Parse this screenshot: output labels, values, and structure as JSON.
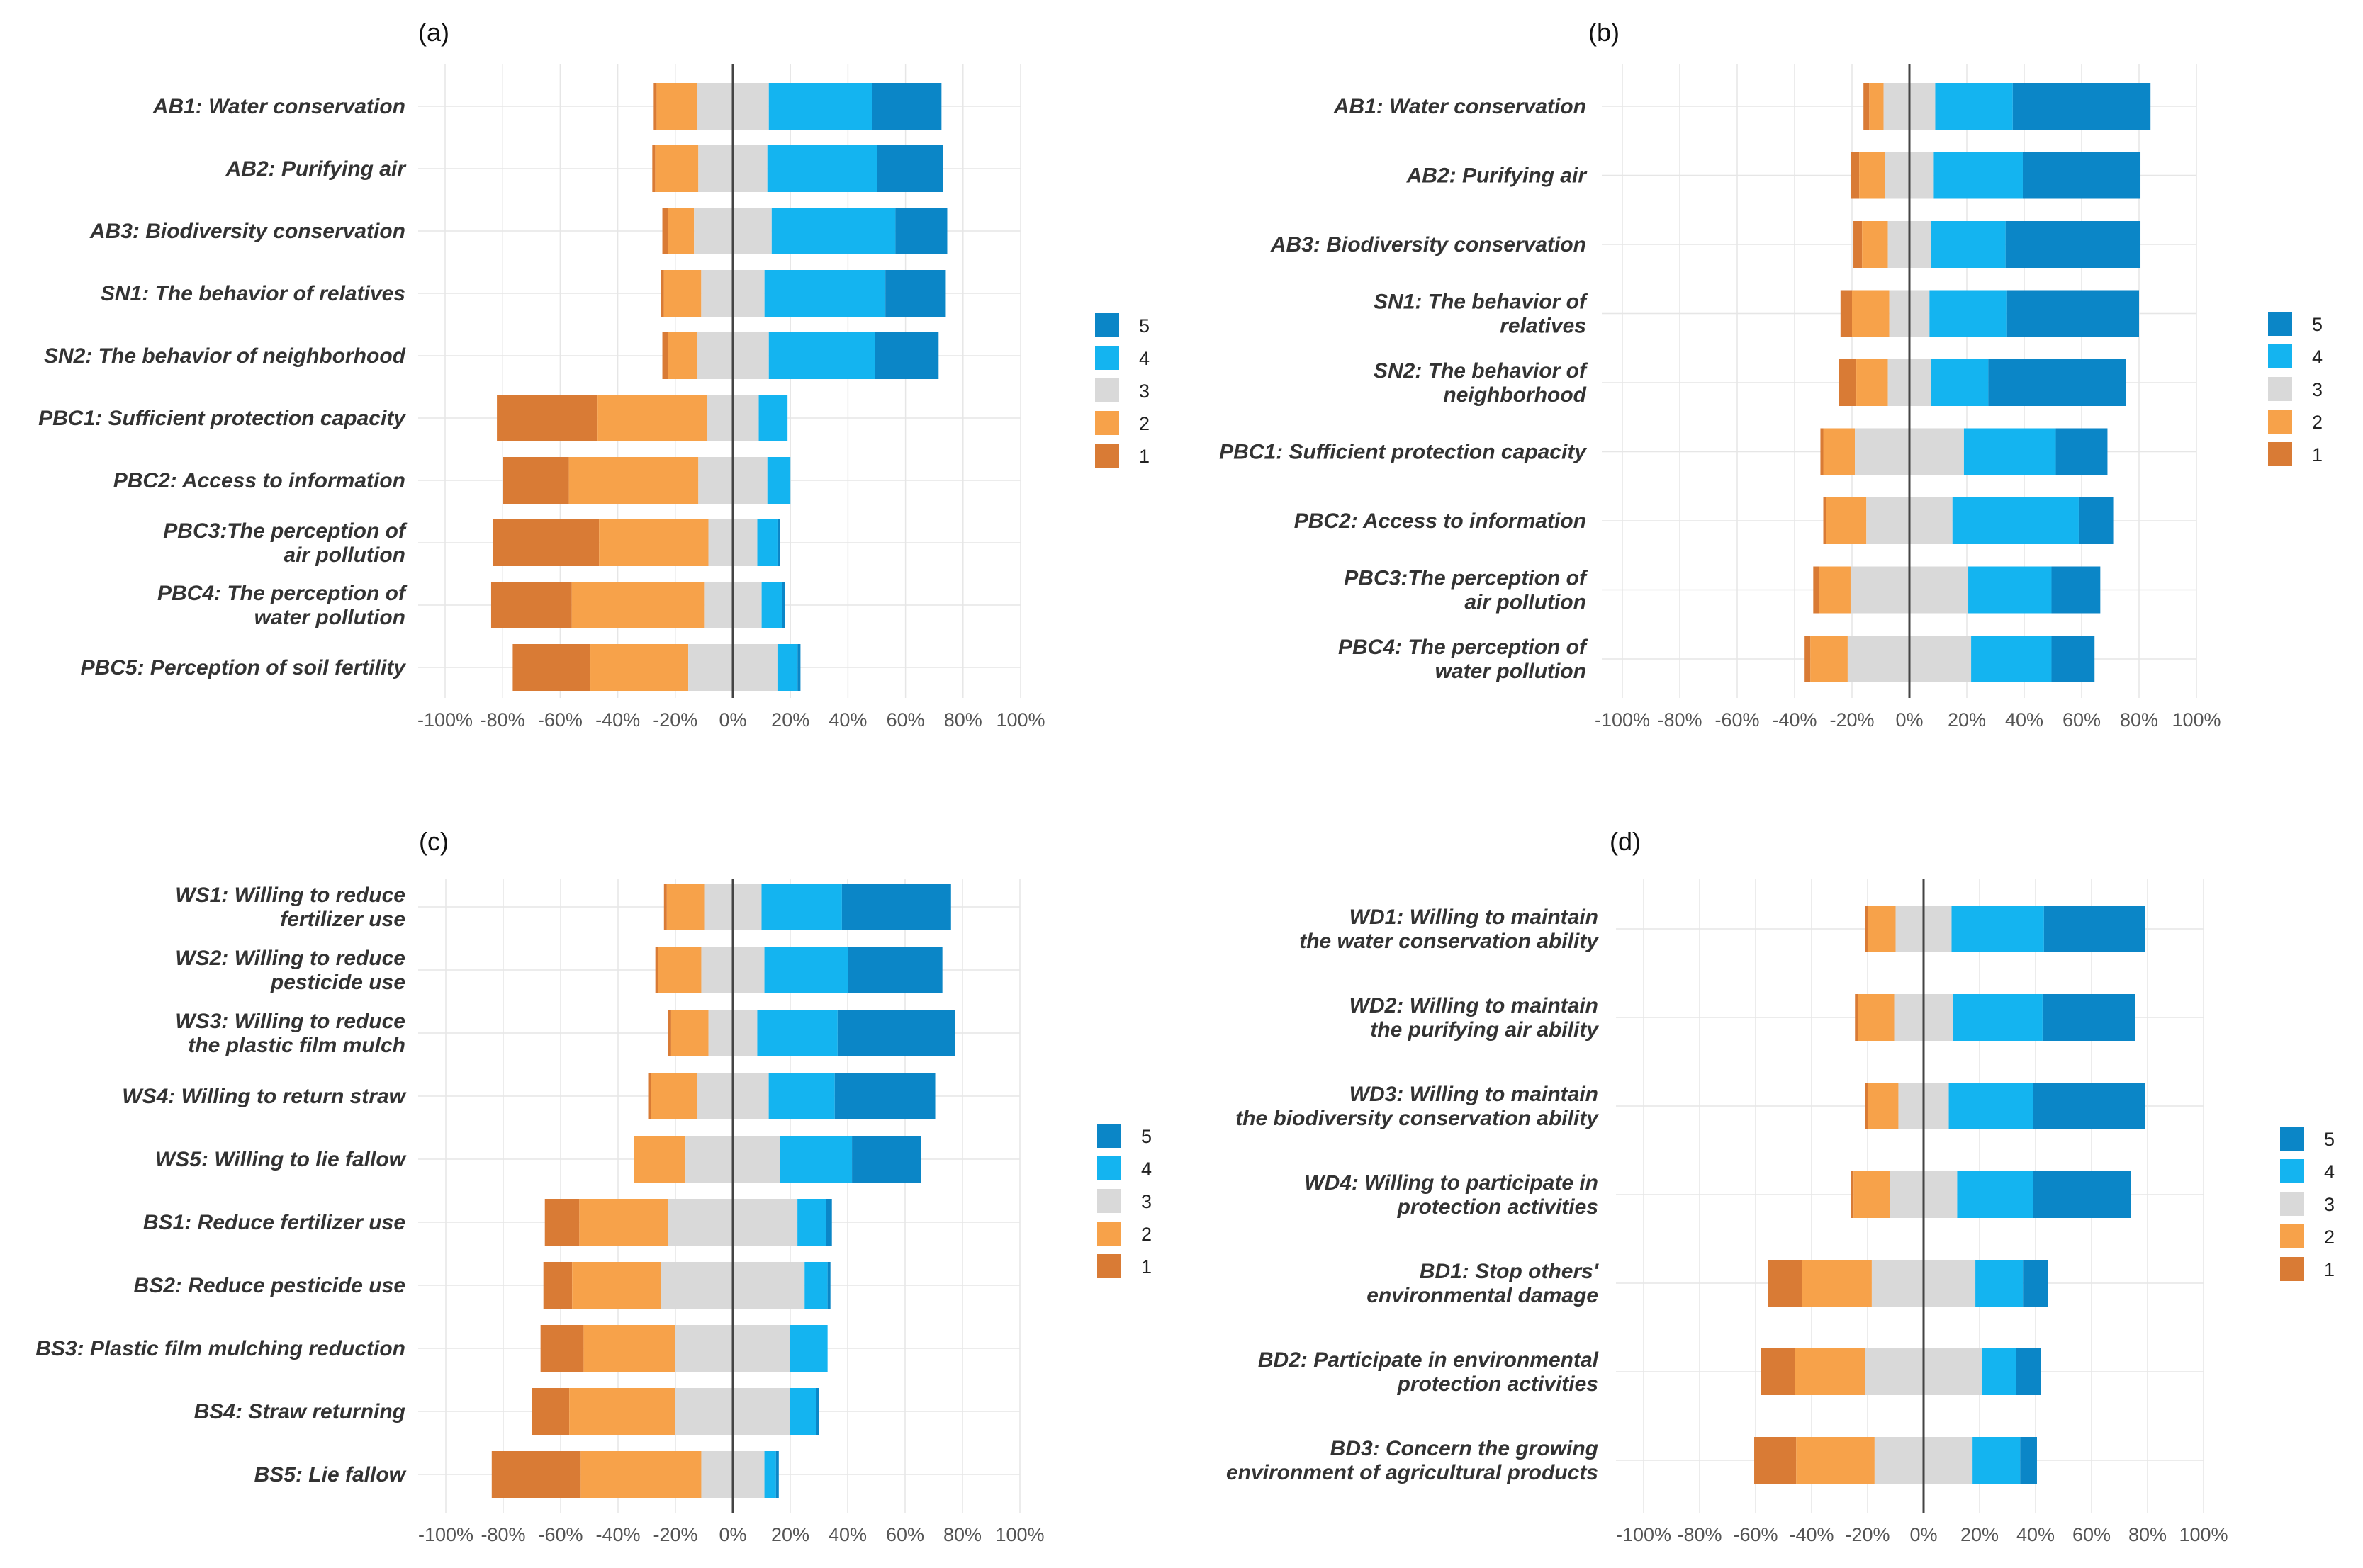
{
  "colors": {
    "1": "#d97b35",
    "2": "#f7a24a",
    "3": "#d9d9d9",
    "4": "#14b4f0",
    "5": "#0b86c7"
  },
  "legend": [
    "5",
    "4",
    "3",
    "2",
    "1"
  ],
  "x_ticks": [
    "-100%",
    "-80%",
    "-60%",
    "-40%",
    "-20%",
    "0%",
    "20%",
    "40%",
    "60%",
    "80%",
    "100%"
  ],
  "chart_data": [
    {
      "type": "bar",
      "panel": "(a)",
      "stacked": true,
      "orientation": "horizontal",
      "xlim": [
        -100,
        100
      ],
      "categories": [
        [
          "AB1: Water conservation"
        ],
        [
          "AB2: Purifying air"
        ],
        [
          "AB3: Biodiversity conservation"
        ],
        [
          "SN1: The behavior of relatives"
        ],
        [
          "SN2: The behavior of neighborhood"
        ],
        [
          "PBC1: Sufficient protection capacity"
        ],
        [
          "PBC2: Access to information"
        ],
        [
          "PBC3:The perception of",
          "air pollution"
        ],
        [
          "PBC4: The perception of",
          "water pollution"
        ],
        [
          "PBC5: Perception of soil fertility"
        ]
      ],
      "series": [
        {
          "name": "1",
          "values": [
            1,
            1,
            2,
            1,
            2,
            35,
            23,
            37,
            28,
            27
          ]
        },
        {
          "name": "2",
          "values": [
            14,
            15,
            9,
            13,
            10,
            38,
            45,
            38,
            46,
            34
          ]
        },
        {
          "name": "3",
          "values": [
            25,
            24,
            27,
            22,
            25,
            18,
            24,
            17,
            20,
            31
          ]
        },
        {
          "name": "4",
          "values": [
            36,
            38,
            43,
            42,
            37,
            10,
            8,
            7,
            7,
            7
          ]
        },
        {
          "name": "5",
          "values": [
            24,
            23,
            18,
            21,
            22,
            0,
            0,
            1,
            1,
            1
          ]
        }
      ]
    },
    {
      "type": "bar",
      "panel": "(b)",
      "stacked": true,
      "orientation": "horizontal",
      "xlim": [
        -100,
        100
      ],
      "categories": [
        [
          "AB1: Water conservation"
        ],
        [
          "AB2: Purifying air"
        ],
        [
          "AB3: Biodiversity conservation"
        ],
        [
          "SN1: The behavior of",
          "relatives"
        ],
        [
          "SN2: The behavior of",
          "neighborhood"
        ],
        [
          "PBC1: Sufficient protection capacity"
        ],
        [
          "PBC2: Access to information"
        ],
        [
          "PBC3:The perception of",
          "air pollution"
        ],
        [
          "PBC4: The perception of",
          "water pollution"
        ]
      ],
      "series": [
        {
          "name": "1",
          "values": [
            2,
            3,
            3,
            4,
            6,
            1,
            1,
            2,
            2
          ]
        },
        {
          "name": "2",
          "values": [
            5,
            9,
            9,
            13,
            11,
            11,
            14,
            11,
            13
          ]
        },
        {
          "name": "3",
          "values": [
            18,
            17,
            15,
            14,
            15,
            38,
            30,
            41,
            43
          ]
        },
        {
          "name": "4",
          "values": [
            27,
            31,
            26,
            27,
            20,
            32,
            44,
            29,
            28
          ]
        },
        {
          "name": "5",
          "values": [
            48,
            41,
            47,
            46,
            48,
            18,
            12,
            17,
            15
          ]
        }
      ]
    },
    {
      "type": "bar",
      "panel": "(c)",
      "stacked": true,
      "orientation": "horizontal",
      "xlim": [
        -100,
        100
      ],
      "categories": [
        [
          "WS1: Willing to reduce",
          "fertilizer use"
        ],
        [
          "WS2: Willing to reduce",
          "pesticide use"
        ],
        [
          "WS3: Willing to reduce",
          "the plastic film mulch"
        ],
        [
          "WS4: Willing to return straw"
        ],
        [
          "WS5: Willing to lie fallow"
        ],
        [
          "BS1: Reduce fertilizer use"
        ],
        [
          "BS2: Reduce pesticide use"
        ],
        [
          "BS3: Plastic film mulching reduction"
        ],
        [
          "BS4: Straw returning"
        ],
        [
          "BS5: Lie fallow"
        ]
      ],
      "series": [
        {
          "name": "1",
          "values": [
            1,
            1,
            1,
            1,
            0,
            12,
            10,
            15,
            13,
            31
          ]
        },
        {
          "name": "2",
          "values": [
            13,
            15,
            13,
            16,
            18,
            31,
            31,
            32,
            37,
            42
          ]
        },
        {
          "name": "3",
          "values": [
            20,
            22,
            17,
            25,
            33,
            45,
            50,
            40,
            40,
            22
          ]
        },
        {
          "name": "4",
          "values": [
            28,
            29,
            28,
            23,
            25,
            10,
            8,
            13,
            9,
            4
          ]
        },
        {
          "name": "5",
          "values": [
            38,
            33,
            41,
            35,
            24,
            2,
            1,
            0,
            1,
            1
          ]
        }
      ]
    },
    {
      "type": "bar",
      "panel": "(d)",
      "stacked": true,
      "orientation": "horizontal",
      "xlim": [
        -100,
        100
      ],
      "categories": [
        [
          "WD1: Willing to maintain",
          "the water conservation ability"
        ],
        [
          "WD2: Willing to maintain",
          "the purifying air ability"
        ],
        [
          "WD3: Willing to maintain",
          "the biodiversity conservation ability"
        ],
        [
          "WD4: Willing to participate in",
          "protection activities"
        ],
        [
          "BD1: Stop others'",
          "environmental damage"
        ],
        [
          "BD2: Participate in environmental",
          "protection activities"
        ],
        [
          "BD3: Concern the growing",
          "environment of agricultural products"
        ]
      ],
      "series": [
        {
          "name": "1",
          "values": [
            1,
            1,
            1,
            1,
            12,
            12,
            15
          ]
        },
        {
          "name": "2",
          "values": [
            10,
            13,
            11,
            13,
            25,
            25,
            28
          ]
        },
        {
          "name": "3",
          "values": [
            20,
            21,
            18,
            24,
            37,
            42,
            35
          ]
        },
        {
          "name": "4",
          "values": [
            33,
            32,
            30,
            27,
            17,
            12,
            17
          ]
        },
        {
          "name": "5",
          "values": [
            36,
            33,
            40,
            35,
            9,
            9,
            6
          ]
        }
      ]
    }
  ]
}
